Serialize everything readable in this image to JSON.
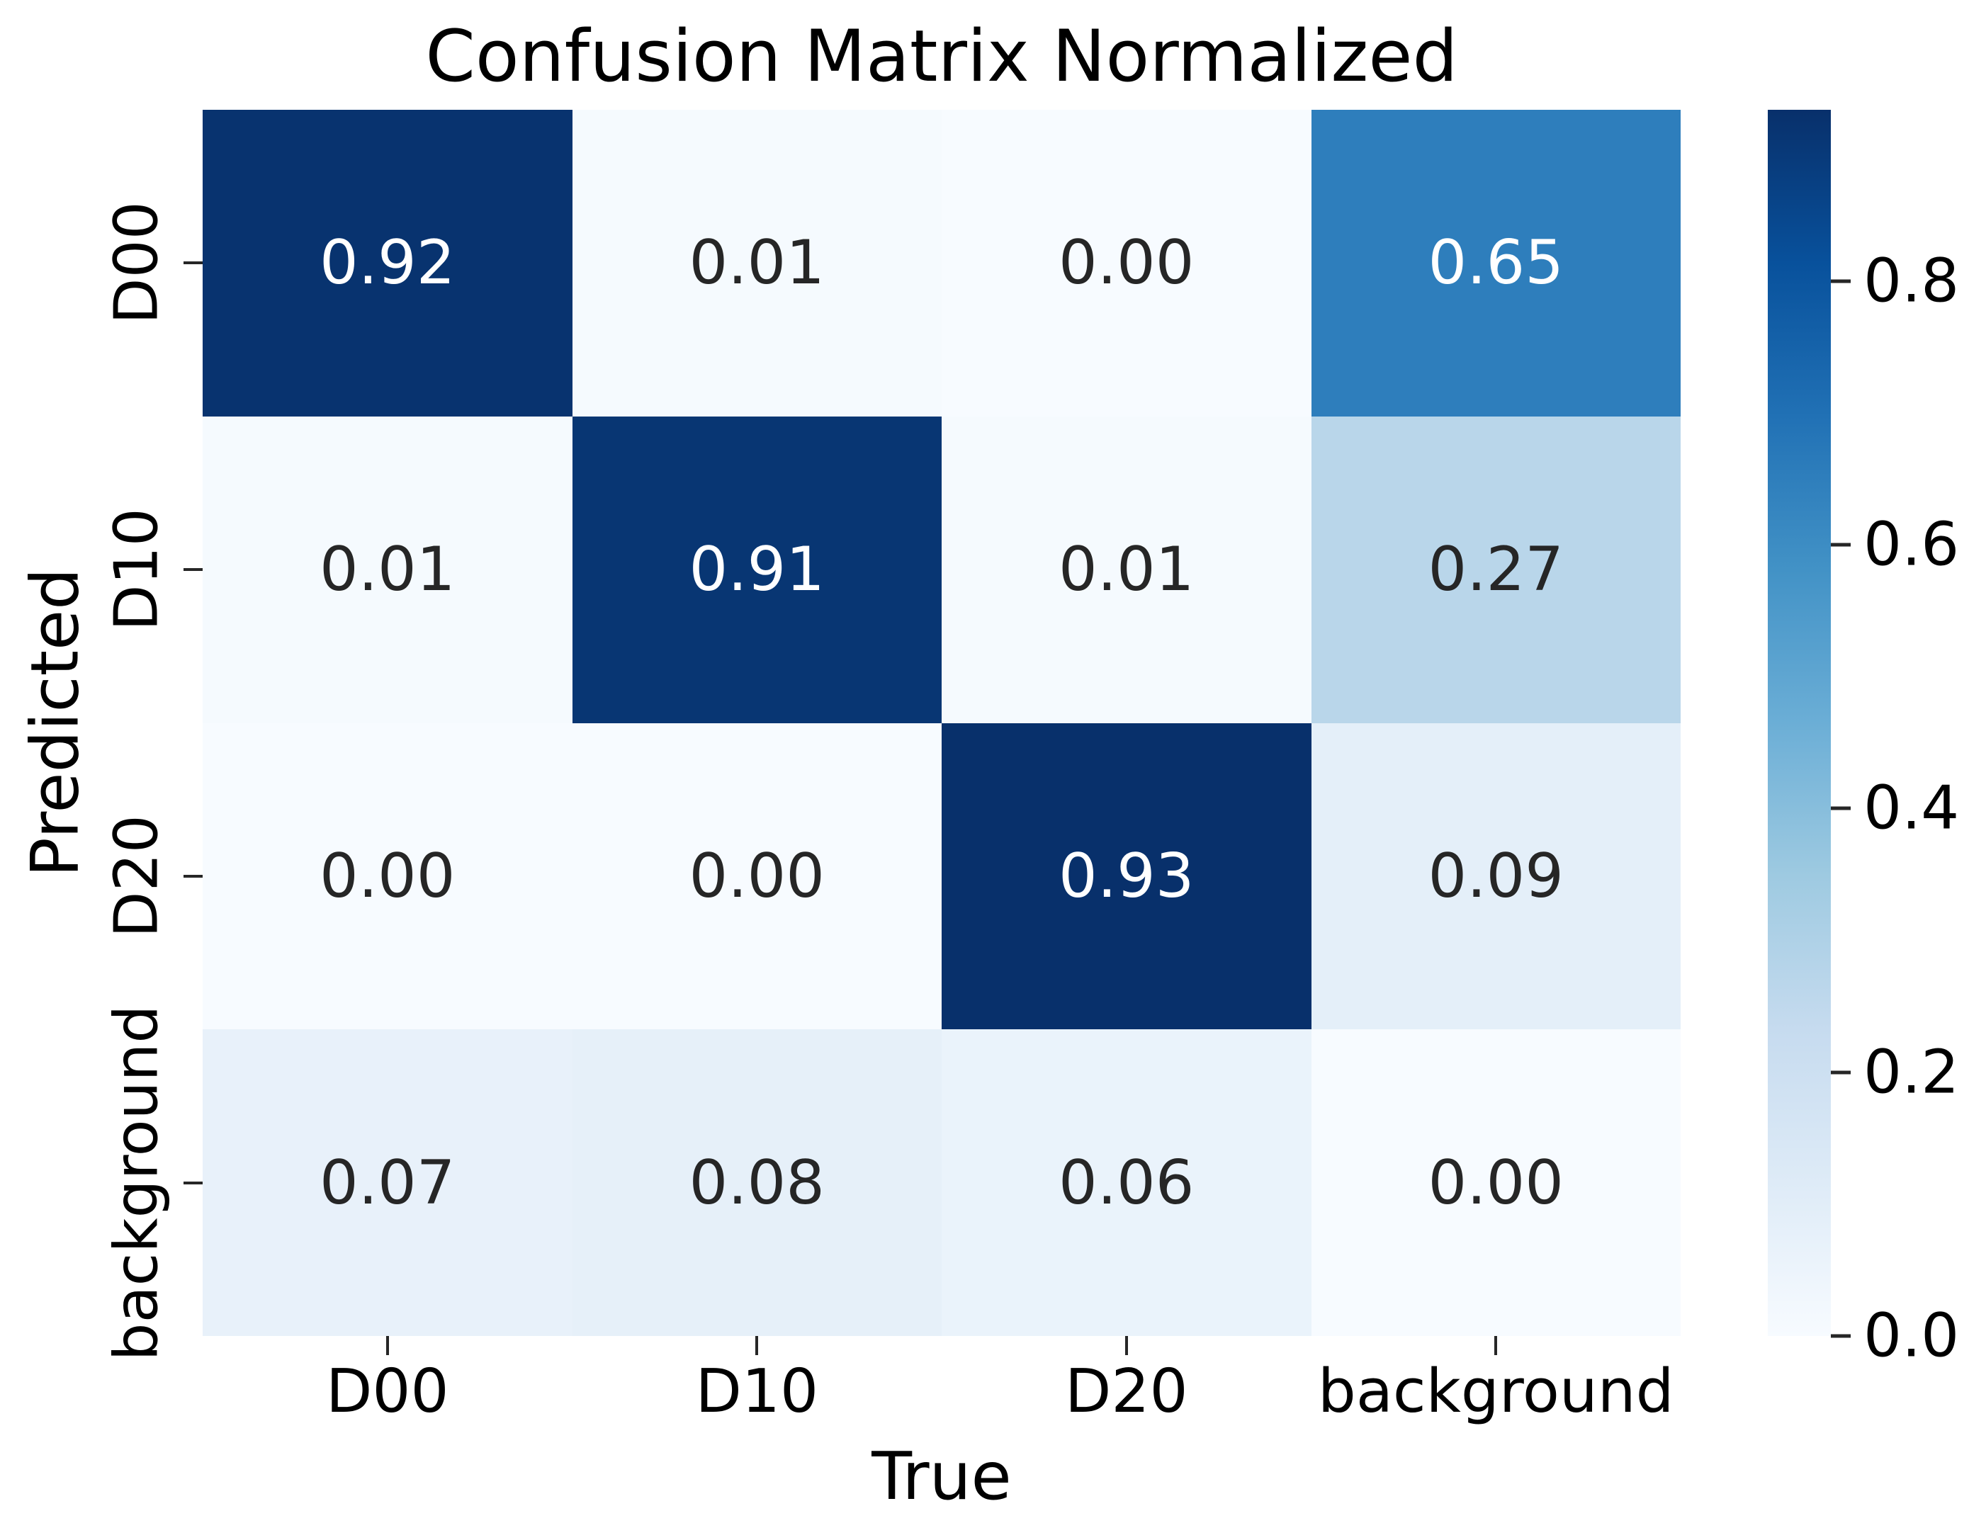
{
  "chart_data": {
    "type": "heatmap",
    "title": "Confusion Matrix Normalized",
    "xlabel": "True",
    "ylabel": "Predicted",
    "x_axis_semantic": "True class",
    "y_axis_semantic": "Predicted class",
    "x_categories": [
      "D00",
      "D10",
      "D20",
      "background"
    ],
    "y_categories": [
      "D00",
      "D10",
      "D20",
      "background"
    ],
    "matrix": [
      [
        0.92,
        0.01,
        0.0,
        0.65
      ],
      [
        0.01,
        0.91,
        0.01,
        0.27
      ],
      [
        0.0,
        0.0,
        0.93,
        0.09
      ],
      [
        0.07,
        0.08,
        0.06,
        0.0
      ]
    ],
    "value_decimals": 2,
    "vmin": 0.0,
    "vmax": 0.93,
    "colormap": "Blues",
    "colormap_stops": [
      "#f7fbff",
      "#deebf7",
      "#c6dbef",
      "#9ecae1",
      "#6baed6",
      "#4292c6",
      "#2171b5",
      "#08519c",
      "#08306b"
    ],
    "colorbar_ticks": [
      0.8,
      0.6,
      0.4,
      0.2,
      0.0
    ],
    "colorbar_tick_decimals": 1,
    "legend_position": "right-colorbar",
    "grid": false,
    "colors": {
      "figure_background": "#ffffff",
      "text": "#000000",
      "tick_mark": "#262626",
      "annotation_dark": "#262626",
      "annotation_light": "#ffffff",
      "darkest_cell": "#08306b",
      "lightest_cell": "#f7fbff"
    }
  }
}
